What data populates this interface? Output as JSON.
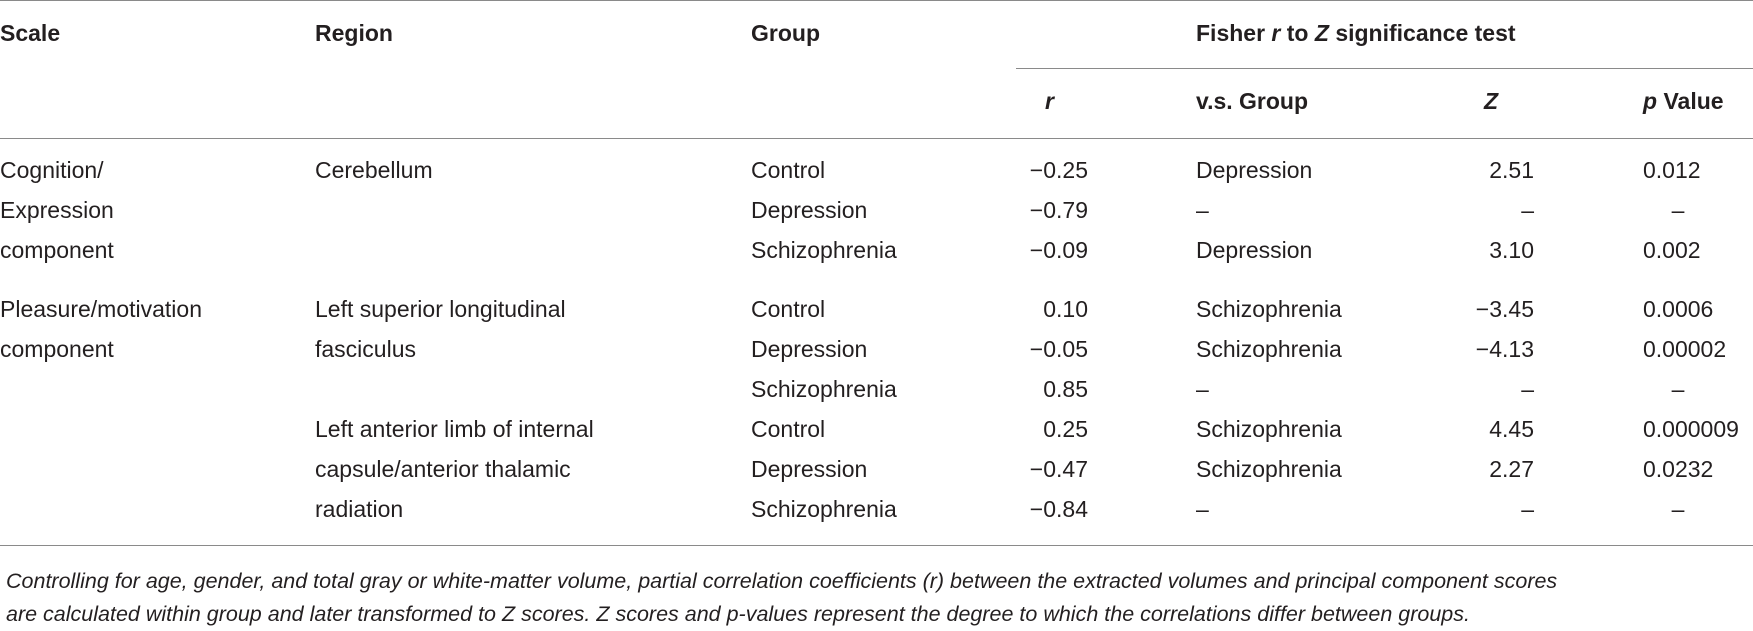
{
  "header": {
    "scale": "Scale",
    "region": "Region",
    "group": "Group",
    "fisher_pre": "Fisher ",
    "fisher_r": "r",
    "fisher_to": " to ",
    "fisher_z": "Z",
    "fisher_post": " significance test",
    "r": "r",
    "vs_group": "v.s. Group",
    "z": "Z",
    "p_italic": "p",
    "p_value": " Value"
  },
  "rows": [
    {
      "scale": "Cognition/",
      "region": "Cerebellum",
      "group": "Control",
      "r": "−0.25",
      "vs": "Depression",
      "z": "2.51",
      "p": "0.012"
    },
    {
      "scale": "Expression",
      "region": "",
      "group": "Depression",
      "r": "−0.79",
      "vs": "–",
      "z": "–",
      "p": "–"
    },
    {
      "scale": "component",
      "region": "",
      "group": "Schizophrenia",
      "r": "−0.09",
      "vs": "Depression",
      "z": "3.10",
      "p": "0.002"
    },
    {
      "scale": "Pleasure/motivation",
      "region": "Left superior longitudinal",
      "group": "Control",
      "r": "0.10",
      "vs": "Schizophrenia",
      "z": "−3.45",
      "p": "0.0006"
    },
    {
      "scale": "component",
      "region": "fasciculus",
      "group": "Depression",
      "r": "−0.05",
      "vs": "Schizophrenia",
      "z": "−4.13",
      "p": "0.00002"
    },
    {
      "scale": "",
      "region": "",
      "group": "Schizophrenia",
      "r": "0.85",
      "vs": "–",
      "z": "–",
      "p": "–"
    },
    {
      "scale": "",
      "region": "Left anterior limb of internal",
      "group": "Control",
      "r": "0.25",
      "vs": "Schizophrenia",
      "z": "4.45",
      "p": "0.000009"
    },
    {
      "scale": "",
      "region": "capsule/anterior thalamic",
      "group": "Depression",
      "r": "−0.47",
      "vs": "Schizophrenia",
      "z": "2.27",
      "p": "0.0232"
    },
    {
      "scale": "",
      "region": "radiation",
      "group": "Schizophrenia",
      "r": "−0.84",
      "vs": "–",
      "z": "–",
      "p": "–"
    }
  ],
  "footnote": {
    "line1": "Controlling for age, gender, and total gray or white-matter volume, partial correlation coefficients (r) between the extracted volumes and principal component scores",
    "line2": "are calculated within group and later transformed to Z scores. Z scores and p-values represent the degree to which the correlations differ between groups."
  }
}
